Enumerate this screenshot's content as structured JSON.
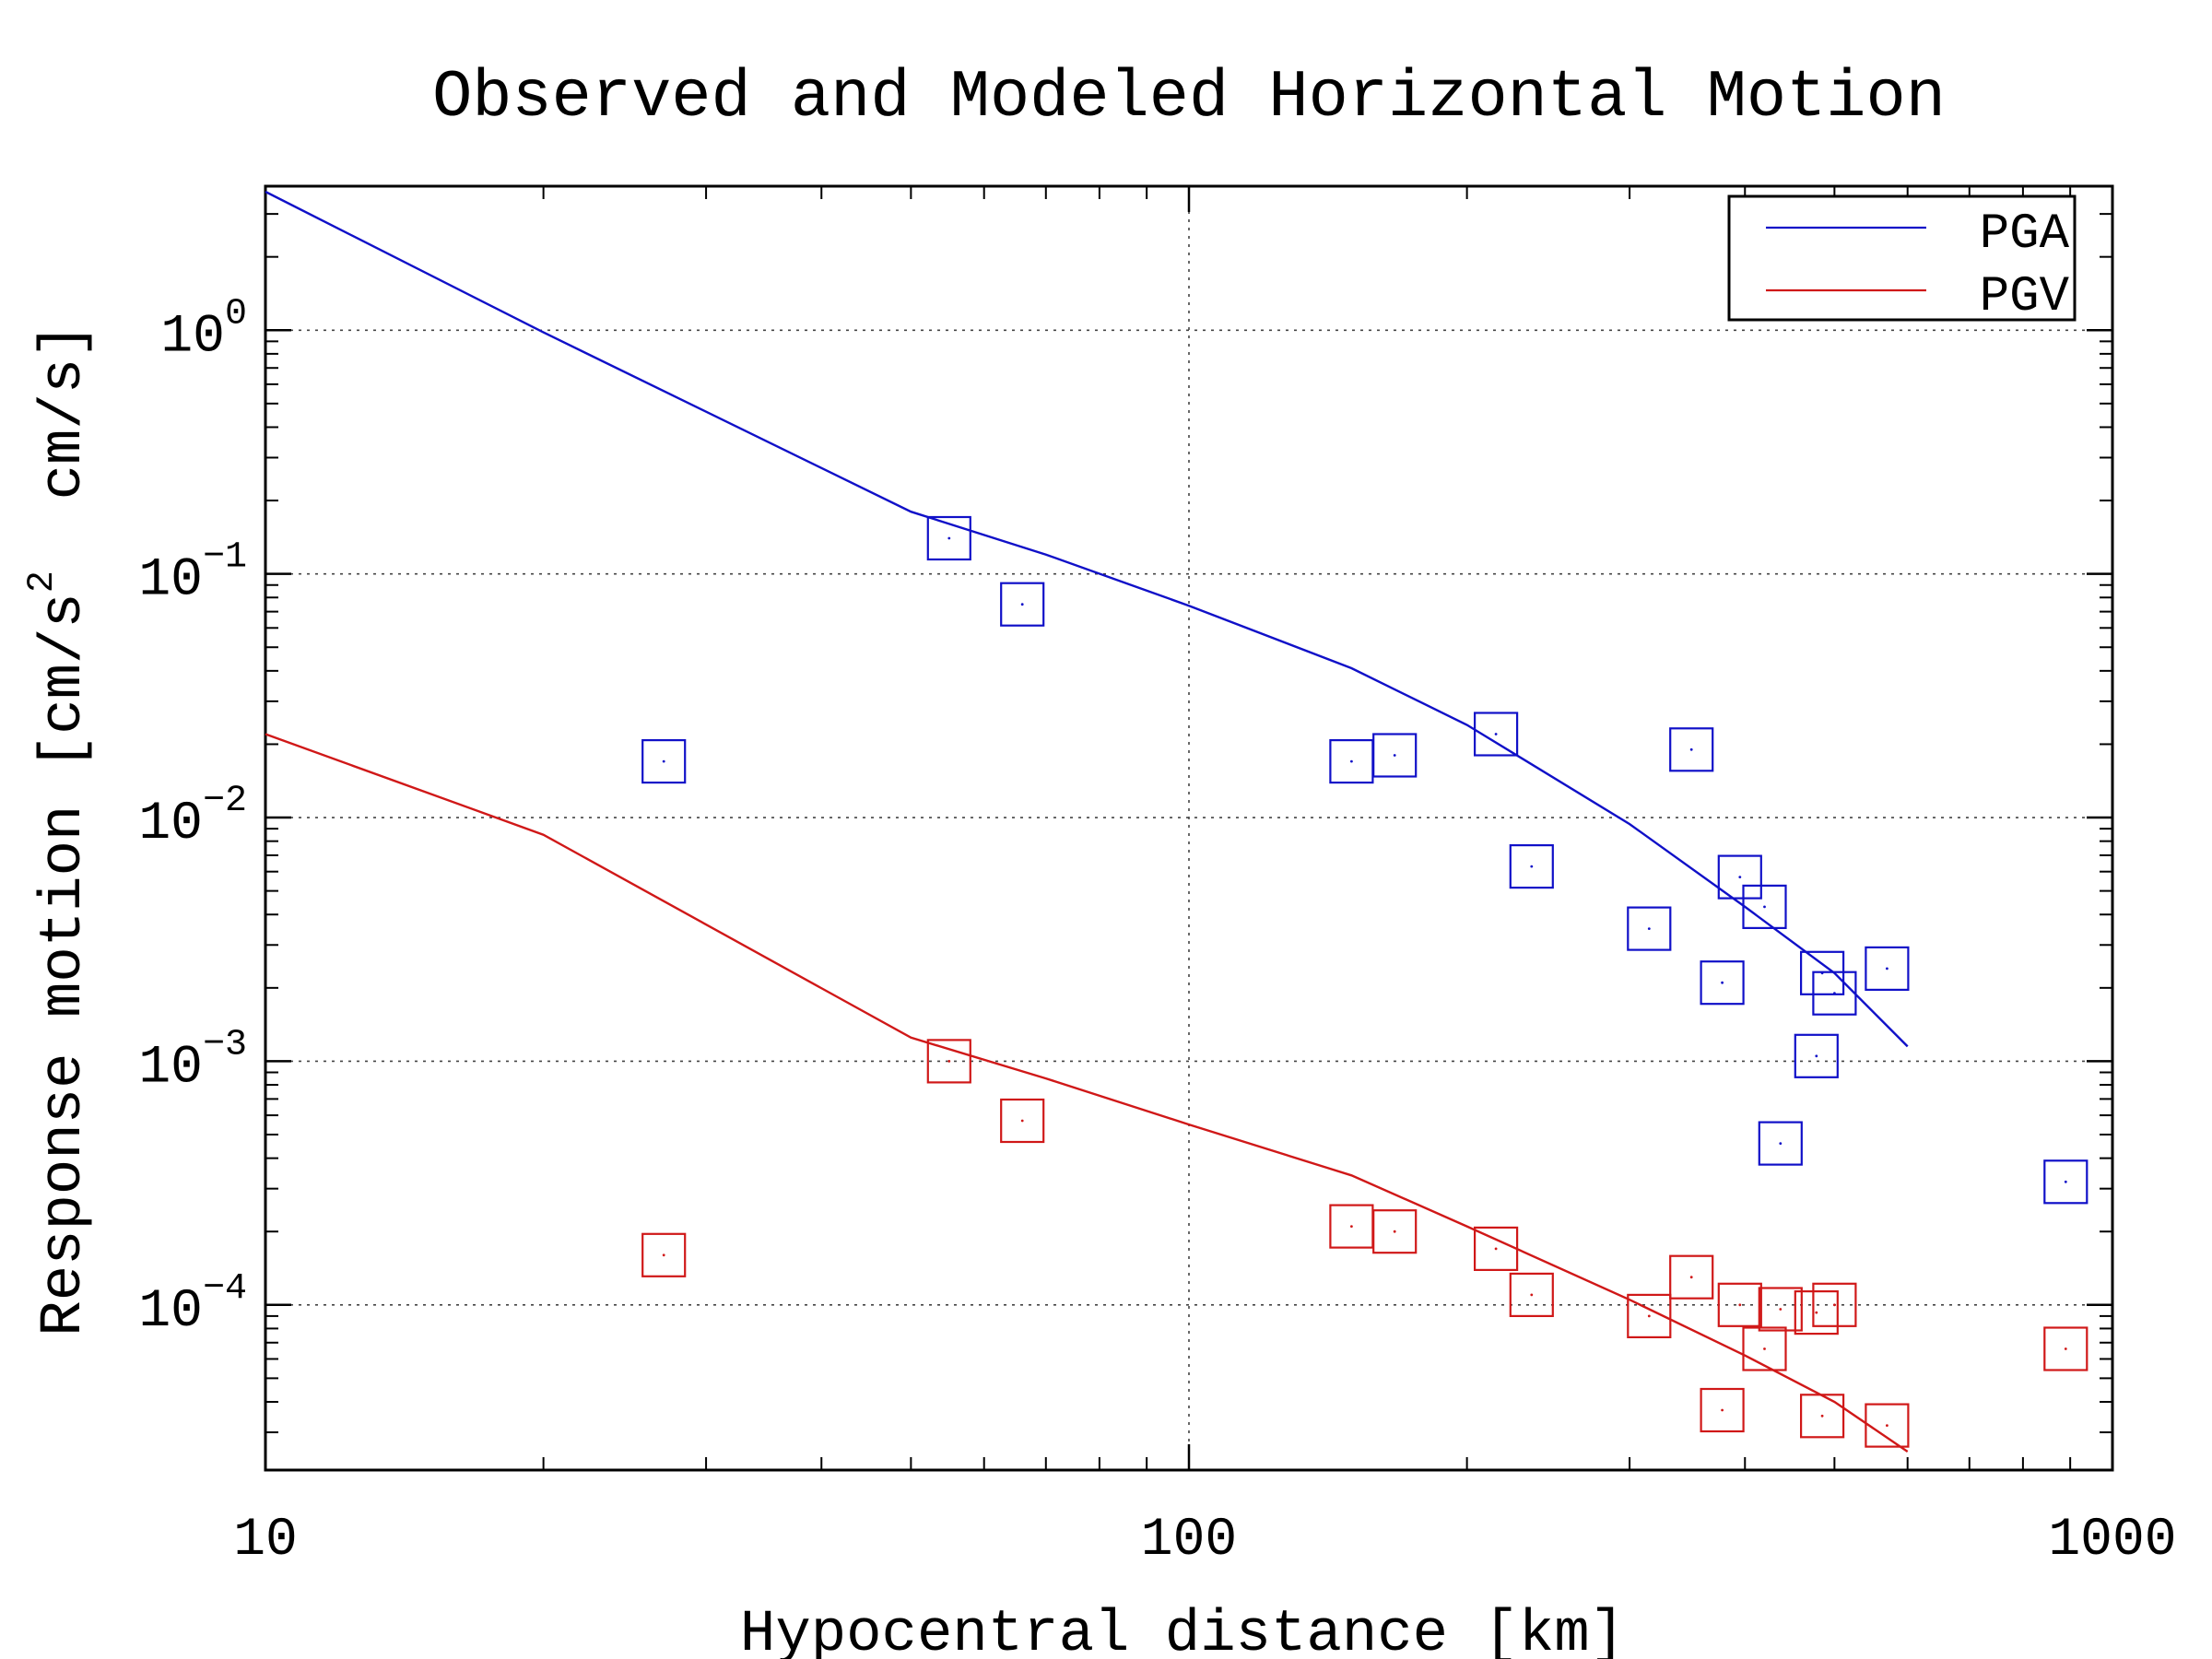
{
  "chart_data": {
    "type": "scatter",
    "title": "Observed and Modeled Horizontal Motion",
    "xlabel": "Hypocentral distance [km]",
    "ylabel": "Response motion [cm/s",
    "ylabel_sup": "2",
    "ylabel_tail": "  cm/s]",
    "x_scale": "log",
    "y_scale": "log",
    "xlim": [
      10,
      1000
    ],
    "ylim": [
      2.1e-05,
      3.9
    ],
    "grid": true,
    "legend_position": "top-right",
    "x_ticks": [
      {
        "value": 10,
        "label": "10"
      },
      {
        "value": 100,
        "label": "100"
      },
      {
        "value": 1000,
        "label": "1000"
      }
    ],
    "y_ticks": [
      {
        "value": 1,
        "base": "10",
        "exp": "0"
      },
      {
        "value": 0.1,
        "base": "10",
        "exp": "−1"
      },
      {
        "value": 0.01,
        "base": "10",
        "exp": "−2"
      },
      {
        "value": 0.001,
        "base": "10",
        "exp": "−3"
      },
      {
        "value": 0.0001,
        "base": "10",
        "exp": "−4"
      }
    ],
    "series": [
      {
        "name": "PGA",
        "color": "#1010c8",
        "model_line": {
          "x": [
            10,
            20,
            50,
            70,
            100,
            150,
            200,
            300,
            400,
            500,
            600
          ],
          "y": [
            3.7,
            0.98,
            0.18,
            0.12,
            0.074,
            0.041,
            0.024,
            0.0094,
            0.0043,
            0.0023,
            0.00115
          ]
        },
        "observations": {
          "x": [
            27,
            55,
            66,
            150,
            167,
            215,
            235,
            315,
            350,
            378,
            395,
            420,
            437,
            478,
            485,
            500,
            570,
            890
          ],
          "y": [
            0.017,
            0.14,
            0.075,
            0.017,
            0.018,
            0.022,
            0.0063,
            0.0035,
            0.019,
            0.0021,
            0.0057,
            0.0043,
            0.00046,
            0.00105,
            0.0023,
            0.0019,
            0.0024,
            0.00032
          ]
        }
      },
      {
        "name": "PGV",
        "color": "#d01818",
        "model_line": {
          "x": [
            10,
            20,
            50,
            70,
            100,
            150,
            200,
            300,
            400,
            500,
            600
          ],
          "y": [
            0.022,
            0.0085,
            0.00125,
            0.00085,
            0.00055,
            0.00034,
            0.00021,
            0.000105,
            6.2e-05,
            4e-05,
            2.5e-05
          ]
        },
        "observations": {
          "x": [
            27,
            55,
            66,
            150,
            167,
            215,
            235,
            315,
            350,
            378,
            395,
            420,
            437,
            478,
            485,
            500,
            570,
            890
          ],
          "y": [
            0.00016,
            0.001,
            0.00057,
            0.00021,
            0.0002,
            0.00017,
            0.00011,
            9e-05,
            0.00013,
            3.7e-05,
            0.0001,
            6.6e-05,
            9.6e-05,
            9.3e-05,
            3.5e-05,
            0.0001,
            3.2e-05,
            6.6e-05
          ]
        }
      }
    ]
  }
}
